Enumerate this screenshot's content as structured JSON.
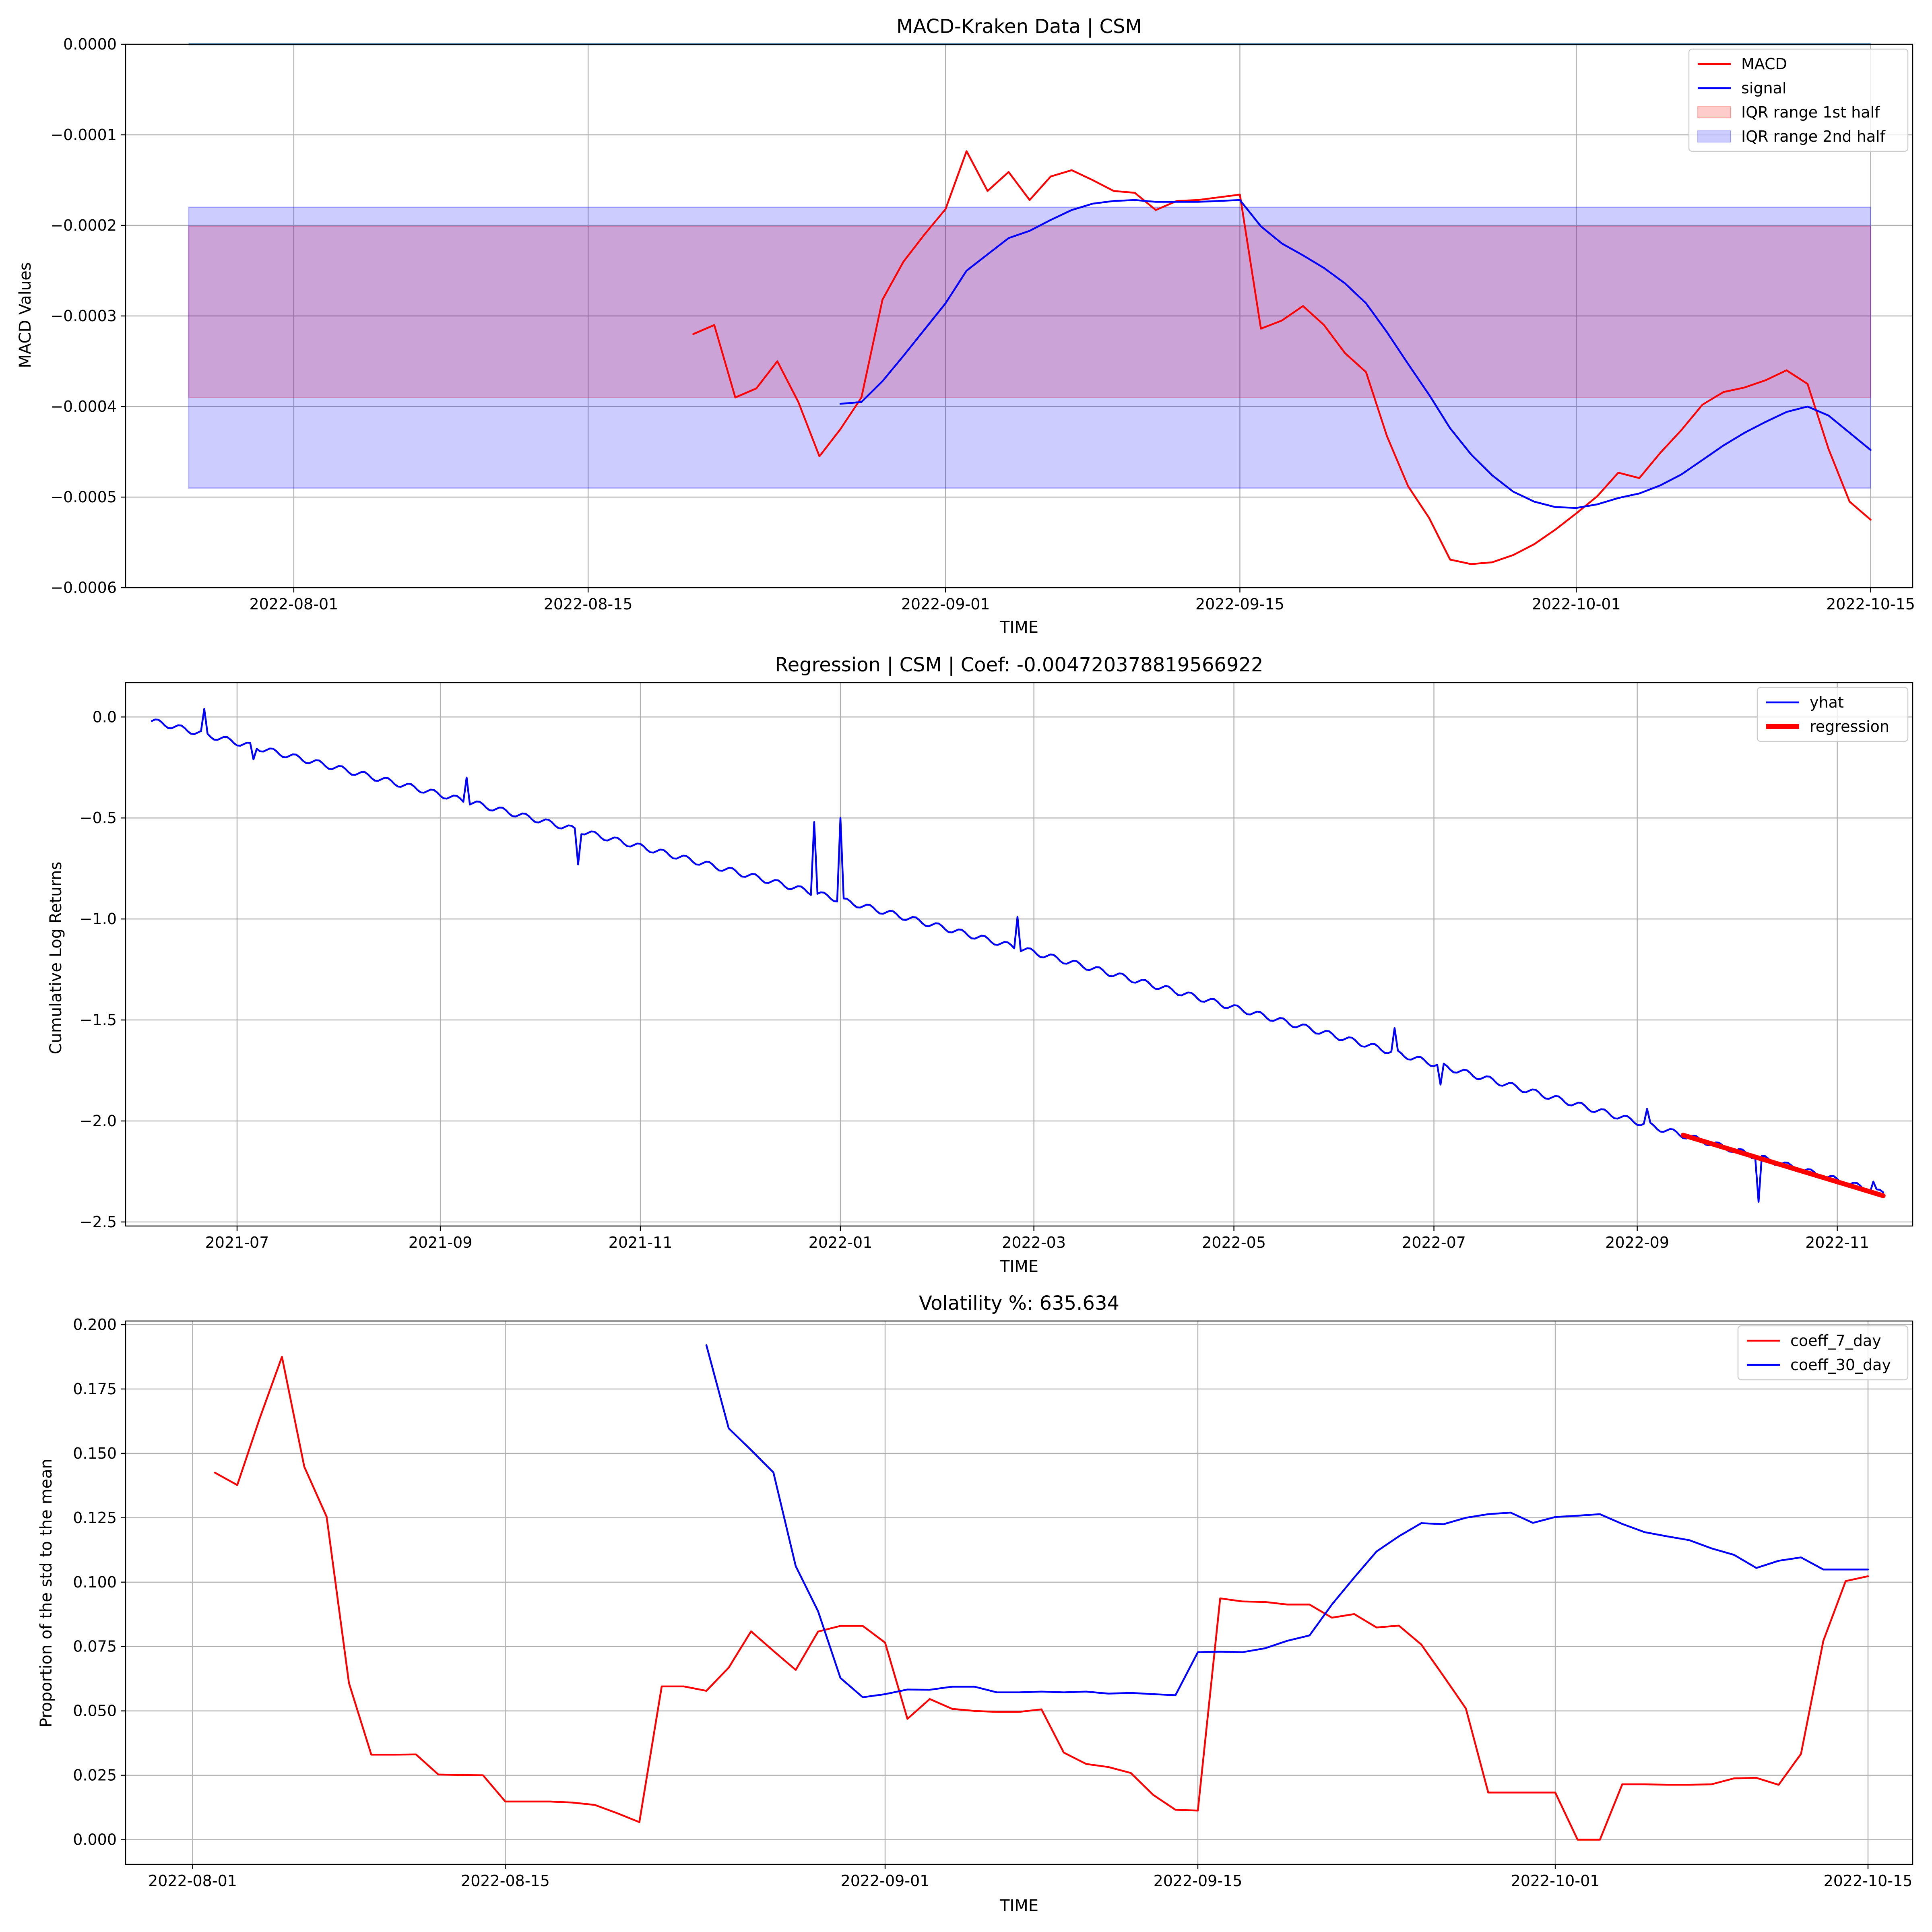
{
  "chart_data": [
    {
      "type": "line",
      "title": "MACD-Kraken Data | CSM",
      "xlabel": "TIME",
      "ylabel": "MACD Values",
      "x_axis": "date",
      "xlim": [
        "2022-07-24",
        "2022-10-17"
      ],
      "ylim": [
        -0.0006,
        0.0
      ],
      "grid": true,
      "legend_position": "top-right",
      "x_ticks": [
        "2022-08-01",
        "2022-08-15",
        "2022-09-01",
        "2022-09-15",
        "2022-10-01",
        "2022-10-15"
      ],
      "y_ticks": [
        "0.0000",
        "−0.0001",
        "−0.0002",
        "−0.0003",
        "−0.0004",
        "−0.0005",
        "−0.0006"
      ],
      "y_tick_values": [
        0.0,
        -0.0001,
        -0.0002,
        -0.0003,
        -0.0004,
        -0.0005,
        -0.0006
      ],
      "reference_line": {
        "value": 0.0,
        "x_start": "2022-07-27",
        "x_end": "2022-10-15",
        "color": "#1f77b4"
      },
      "bands": [
        {
          "name": "IQR range 1st half",
          "x_start": "2022-07-27",
          "x_end": "2022-10-15",
          "y_low": -0.00039,
          "y_high": -0.000201,
          "color": "#ff0000",
          "opacity": 0.2
        },
        {
          "name": "IQR range 2nd half",
          "x_start": "2022-07-27",
          "x_end": "2022-10-15",
          "y_low": -0.00049,
          "y_high": -0.00018,
          "color": "#0000ff",
          "opacity": 0.2
        }
      ],
      "series": [
        {
          "name": "MACD",
          "color": "#ff0000",
          "x": [
            "2022-08-20",
            "2022-08-21",
            "2022-08-22",
            "2022-08-23",
            "2022-08-24",
            "2022-08-25",
            "2022-08-26",
            "2022-08-27",
            "2022-08-28",
            "2022-08-29",
            "2022-08-30",
            "2022-08-31",
            "2022-09-01",
            "2022-09-02",
            "2022-09-03",
            "2022-09-04",
            "2022-09-05",
            "2022-09-06",
            "2022-09-07",
            "2022-09-08",
            "2022-09-09",
            "2022-09-10",
            "2022-09-11",
            "2022-09-12",
            "2022-09-13",
            "2022-09-14",
            "2022-09-15",
            "2022-09-16",
            "2022-09-17",
            "2022-09-18",
            "2022-09-19",
            "2022-09-20",
            "2022-09-21",
            "2022-09-22",
            "2022-09-23",
            "2022-09-24",
            "2022-09-25",
            "2022-09-26",
            "2022-09-27",
            "2022-09-28",
            "2022-09-29",
            "2022-09-30",
            "2022-10-01",
            "2022-10-02",
            "2022-10-03",
            "2022-10-04",
            "2022-10-05",
            "2022-10-06",
            "2022-10-07",
            "2022-10-08",
            "2022-10-09",
            "2022-10-10",
            "2022-10-11",
            "2022-10-12",
            "2022-10-13",
            "2022-10-14",
            "2022-10-15"
          ],
          "values": [
            -0.00032,
            -0.00031,
            -0.00039,
            -0.00038,
            -0.00035,
            -0.000395,
            -0.000455,
            -0.000425,
            -0.00039,
            -0.000282,
            -0.00024,
            -0.00021,
            -0.000182,
            -0.000118,
            -0.000162,
            -0.000141,
            -0.000172,
            -0.000146,
            -0.000139,
            -0.00015,
            -0.000162,
            -0.000164,
            -0.000183,
            -0.000173,
            -0.000172,
            -0.000169,
            -0.000166,
            -0.000314,
            -0.000305,
            -0.000289,
            -0.00031,
            -0.000341,
            -0.000362,
            -0.000433,
            -0.000488,
            -0.000523,
            -0.000569,
            -0.000574,
            -0.000572,
            -0.000564,
            -0.000552,
            -0.000536,
            -0.000518,
            -0.000499,
            -0.000473,
            -0.000479,
            -0.000451,
            -0.000426,
            -0.000398,
            -0.000384,
            -0.000379,
            -0.000371,
            -0.00036,
            -0.000375,
            -0.000447,
            -0.000505,
            -0.000525
          ]
        },
        {
          "name": "signal",
          "color": "#0000ff",
          "x": [
            "2022-08-27",
            "2022-08-28",
            "2022-08-29",
            "2022-08-30",
            "2022-08-31",
            "2022-09-01",
            "2022-09-02",
            "2022-09-03",
            "2022-09-04",
            "2022-09-05",
            "2022-09-06",
            "2022-09-07",
            "2022-09-08",
            "2022-09-09",
            "2022-09-10",
            "2022-09-11",
            "2022-09-12",
            "2022-09-13",
            "2022-09-14",
            "2022-09-15",
            "2022-09-16",
            "2022-09-17",
            "2022-09-18",
            "2022-09-19",
            "2022-09-20",
            "2022-09-21",
            "2022-09-22",
            "2022-09-23",
            "2022-09-24",
            "2022-09-25",
            "2022-09-26",
            "2022-09-27",
            "2022-09-28",
            "2022-09-29",
            "2022-09-30",
            "2022-10-01",
            "2022-10-02",
            "2022-10-03",
            "2022-10-04",
            "2022-10-05",
            "2022-10-06",
            "2022-10-07",
            "2022-10-08",
            "2022-10-09",
            "2022-10-10",
            "2022-10-11",
            "2022-10-12",
            "2022-10-13",
            "2022-10-14",
            "2022-10-15"
          ],
          "values": [
            -0.000397,
            -0.000395,
            -0.000372,
            -0.000344,
            -0.000315,
            -0.000286,
            -0.00025,
            -0.000232,
            -0.000214,
            -0.000206,
            -0.000194,
            -0.000183,
            -0.000176,
            -0.000173,
            -0.000172,
            -0.000174,
            -0.000174,
            -0.000174,
            -0.000173,
            -0.000172,
            -0.000201,
            -0.00022,
            -0.000233,
            -0.000247,
            -0.000264,
            -0.000286,
            -0.000318,
            -0.000353,
            -0.000387,
            -0.000424,
            -0.000453,
            -0.000476,
            -0.000494,
            -0.000505,
            -0.000511,
            -0.000512,
            -0.000508,
            -0.000501,
            -0.000496,
            -0.000487,
            -0.000475,
            -0.000459,
            -0.000443,
            -0.000429,
            -0.000417,
            -0.000406,
            -0.0004,
            -0.00041,
            -0.000429,
            -0.000448
          ]
        }
      ]
    },
    {
      "type": "line",
      "title": "Regression | CSM | Coef: -0.004720378819566922",
      "xlabel": "TIME",
      "ylabel": "Cumulative Log Returns",
      "x_axis": "date",
      "xlim": [
        "2021-05-28",
        "2022-11-24"
      ],
      "ylim": [
        -2.52,
        0.17
      ],
      "grid": true,
      "legend_position": "top-right",
      "x_ticks": [
        "2021-07",
        "2021-09",
        "2021-11",
        "2022-01",
        "2022-03",
        "2022-05",
        "2022-07",
        "2022-09",
        "2022-11"
      ],
      "x_tick_dates": [
        "2021-07-01",
        "2021-09-01",
        "2021-11-01",
        "2022-01-01",
        "2022-03-01",
        "2022-05-01",
        "2022-07-01",
        "2022-09-01",
        "2022-11-01"
      ],
      "y_ticks": [
        "0.0",
        "−0.5",
        "−1.0",
        "−1.5",
        "−2.0",
        "−2.5"
      ],
      "y_tick_values": [
        0.0,
        -0.5,
        -1.0,
        -1.5,
        -2.0,
        -2.5
      ],
      "series": [
        {
          "name": "yhat",
          "color": "#0000ff",
          "x_start": "2021-06-05",
          "x_end": "2022-11-15",
          "trend": {
            "start": -0.02,
            "end": -2.36
          },
          "ripple_amplitude": 0.015,
          "ripple_period_days": 7,
          "spikes": [
            {
              "x": "2021-06-21",
              "value": 0.04
            },
            {
              "x": "2021-07-06",
              "value": -0.21
            },
            {
              "x": "2021-09-09",
              "value": -0.3
            },
            {
              "x": "2021-10-13",
              "value": -0.73
            },
            {
              "x": "2021-12-24",
              "value": -0.52
            },
            {
              "x": "2022-01-01",
              "value": -0.5
            },
            {
              "x": "2022-02-24",
              "value": -0.99
            },
            {
              "x": "2022-06-19",
              "value": -1.54
            },
            {
              "x": "2022-07-03",
              "value": -1.82
            },
            {
              "x": "2022-09-04",
              "value": -1.94
            },
            {
              "x": "2022-10-08",
              "value": -2.4
            },
            {
              "x": "2022-11-12",
              "value": -2.3
            }
          ]
        },
        {
          "name": "regression",
          "color": "#ff0000",
          "x": [
            "2022-09-15",
            "2022-11-15"
          ],
          "values": [
            -2.07,
            -2.37
          ]
        }
      ]
    },
    {
      "type": "line",
      "title": "Volatility %: 635.634",
      "xlabel": "TIME",
      "ylabel": "Proportion of the std to the mean",
      "x_axis": "date",
      "xlim": [
        "2022-07-29",
        "2022-10-17"
      ],
      "ylim": [
        -0.0096,
        0.2014
      ],
      "grid": true,
      "legend_position": "top-right",
      "x_ticks": [
        "2022-08-01",
        "2022-08-15",
        "2022-09-01",
        "2022-09-15",
        "2022-10-01",
        "2022-10-15"
      ],
      "y_ticks": [
        "0.200",
        "0.175",
        "0.150",
        "0.125",
        "0.100",
        "0.075",
        "0.050",
        "0.025",
        "0.000"
      ],
      "y_tick_values": [
        0.2,
        0.175,
        0.15,
        0.125,
        0.1,
        0.075,
        0.05,
        0.025,
        0.0
      ],
      "series": [
        {
          "name": "coeff_7_day",
          "color": "#ff0000",
          "x": [
            "2022-08-02",
            "2022-08-03",
            "2022-08-04",
            "2022-08-05",
            "2022-08-06",
            "2022-08-07",
            "2022-08-08",
            "2022-08-09",
            "2022-08-10",
            "2022-08-11",
            "2022-08-12",
            "2022-08-13",
            "2022-08-14",
            "2022-08-15",
            "2022-08-16",
            "2022-08-17",
            "2022-08-18",
            "2022-08-19",
            "2022-08-20",
            "2022-08-21",
            "2022-08-22",
            "2022-08-23",
            "2022-08-24",
            "2022-08-25",
            "2022-08-26",
            "2022-08-27",
            "2022-08-28",
            "2022-08-29",
            "2022-08-30",
            "2022-08-31",
            "2022-09-01",
            "2022-09-02",
            "2022-09-03",
            "2022-09-04",
            "2022-09-05",
            "2022-09-06",
            "2022-09-07",
            "2022-09-08",
            "2022-09-09",
            "2022-09-10",
            "2022-09-11",
            "2022-09-12",
            "2022-09-13",
            "2022-09-14",
            "2022-09-15",
            "2022-09-16",
            "2022-09-17",
            "2022-09-18",
            "2022-09-19",
            "2022-09-20",
            "2022-09-21",
            "2022-09-22",
            "2022-09-23",
            "2022-09-24",
            "2022-09-25",
            "2022-09-26",
            "2022-09-27",
            "2022-09-28",
            "2022-09-29",
            "2022-09-30",
            "2022-10-01",
            "2022-10-02",
            "2022-10-03",
            "2022-10-04",
            "2022-10-05",
            "2022-10-06",
            "2022-10-07",
            "2022-10-08",
            "2022-10-09",
            "2022-10-10",
            "2022-10-11",
            "2022-10-12",
            "2022-10-13",
            "2022-10-14",
            "2022-10-15"
          ],
          "values": [
            0.1425,
            0.1377,
            0.1635,
            0.1875,
            0.1448,
            0.1254,
            0.0608,
            0.033,
            0.033,
            0.0331,
            0.0253,
            0.0251,
            0.025,
            0.0148,
            0.0148,
            0.0148,
            0.0144,
            0.0135,
            0.0103,
            0.0068,
            0.0595,
            0.0595,
            0.0578,
            0.0668,
            0.0809,
            0.0733,
            0.0659,
            0.0808,
            0.083,
            0.083,
            0.0765,
            0.0469,
            0.0546,
            0.0508,
            0.05,
            0.0496,
            0.0496,
            0.0506,
            0.0338,
            0.0294,
            0.0282,
            0.0259,
            0.0174,
            0.0116,
            0.0113,
            0.0937,
            0.0925,
            0.0923,
            0.0913,
            0.0913,
            0.0862,
            0.0876,
            0.0824,
            0.0831,
            0.0758,
            0.0635,
            0.0509,
            0.0183,
            0.0183,
            0.0183,
            0.0183,
            0.0,
            0.0,
            0.0215,
            0.0215,
            0.0213,
            0.0213,
            0.0215,
            0.0238,
            0.024,
            0.0213,
            0.0333,
            0.0772,
            0.1004,
            0.1023
          ]
        },
        {
          "name": "coeff_30_day",
          "color": "#0000ff",
          "x": [
            "2022-08-24",
            "2022-08-25",
            "2022-08-26",
            "2022-08-27",
            "2022-08-28",
            "2022-08-29",
            "2022-08-30",
            "2022-08-31",
            "2022-09-01",
            "2022-09-02",
            "2022-09-03",
            "2022-09-04",
            "2022-09-05",
            "2022-09-06",
            "2022-09-07",
            "2022-09-08",
            "2022-09-09",
            "2022-09-10",
            "2022-09-11",
            "2022-09-12",
            "2022-09-13",
            "2022-09-14",
            "2022-09-15",
            "2022-09-16",
            "2022-09-17",
            "2022-09-18",
            "2022-09-19",
            "2022-09-20",
            "2022-09-21",
            "2022-09-22",
            "2022-09-23",
            "2022-09-24",
            "2022-09-25",
            "2022-09-26",
            "2022-09-27",
            "2022-09-28",
            "2022-09-29",
            "2022-09-30",
            "2022-10-01",
            "2022-10-02",
            "2022-10-03",
            "2022-10-04",
            "2022-10-05",
            "2022-10-06",
            "2022-10-07",
            "2022-10-08",
            "2022-10-09",
            "2022-10-10",
            "2022-10-11",
            "2022-10-12",
            "2022-10-13",
            "2022-10-14",
            "2022-10-15"
          ],
          "values": [
            0.192,
            0.1597,
            0.1513,
            0.1426,
            0.1062,
            0.0887,
            0.0628,
            0.0553,
            0.0565,
            0.0583,
            0.0582,
            0.0594,
            0.0594,
            0.0572,
            0.0572,
            0.0575,
            0.0572,
            0.0575,
            0.0567,
            0.057,
            0.0565,
            0.0561,
            0.0728,
            0.073,
            0.0728,
            0.0743,
            0.0772,
            0.0793,
            0.0913,
            0.1018,
            0.1119,
            0.1178,
            0.1229,
            0.1225,
            0.125,
            0.1264,
            0.127,
            0.123,
            0.1253,
            0.1258,
            0.1264,
            0.1226,
            0.1194,
            0.1178,
            0.1163,
            0.1131,
            0.1106,
            0.1055,
            0.1083,
            0.1096,
            0.1049,
            0.1049,
            0.1049
          ]
        }
      ]
    }
  ]
}
